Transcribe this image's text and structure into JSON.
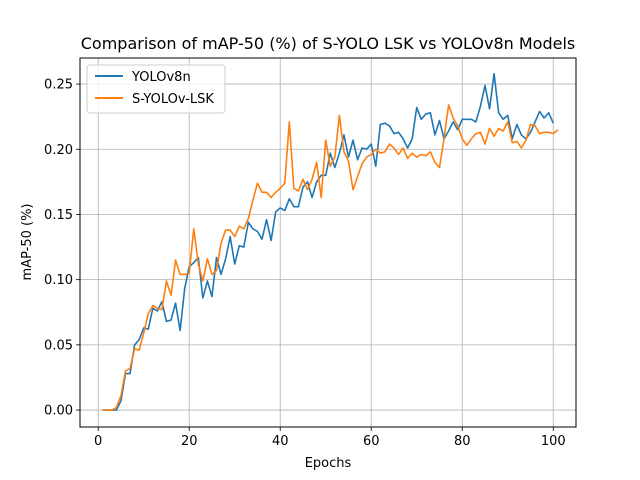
{
  "chart_data": {
    "type": "line",
    "title": "Comparison of mAP-50 (%) of S-YOLO LSK vs YOLOv8n Models",
    "xlabel": "Epochs",
    "ylabel": "mAP-50 (%)",
    "xlim": [
      -4,
      105
    ],
    "ylim": [
      -0.013,
      0.27
    ],
    "xticks": [
      0,
      20,
      40,
      60,
      80,
      100
    ],
    "yticks": [
      0.0,
      0.05,
      0.1,
      0.15,
      0.2,
      0.25
    ],
    "xtick_labels": [
      "0",
      "20",
      "40",
      "60",
      "80",
      "100"
    ],
    "ytick_labels": [
      "0.00",
      "0.05",
      "0.10",
      "0.15",
      "0.20",
      "0.25"
    ],
    "grid": true,
    "legend_position": "top-left",
    "series": [
      {
        "name": "YOLOv8n",
        "color": "#1f77b4",
        "values": [
          0.0,
          0.0,
          0.0,
          0.0,
          0.007,
          0.028,
          0.028,
          0.05,
          0.054,
          0.063,
          0.062,
          0.078,
          0.076,
          0.083,
          0.068,
          0.069,
          0.082,
          0.061,
          0.093,
          0.11,
          0.113,
          0.117,
          0.086,
          0.099,
          0.087,
          0.117,
          0.104,
          0.116,
          0.133,
          0.112,
          0.126,
          0.125,
          0.144,
          0.139,
          0.137,
          0.131,
          0.146,
          0.13,
          0.152,
          0.155,
          0.153,
          0.162,
          0.156,
          0.156,
          0.171,
          0.175,
          0.163,
          0.175,
          0.18,
          0.18,
          0.197,
          0.186,
          0.197,
          0.211,
          0.194,
          0.207,
          0.192,
          0.201,
          0.2,
          0.204,
          0.187,
          0.219,
          0.22,
          0.218,
          0.212,
          0.213,
          0.208,
          0.201,
          0.208,
          0.232,
          0.223,
          0.227,
          0.228,
          0.211,
          0.222,
          0.208,
          0.214,
          0.221,
          0.215,
          0.223,
          0.223,
          0.223,
          0.221,
          0.233,
          0.249,
          0.231,
          0.258,
          0.228,
          0.223,
          0.226,
          0.208,
          0.219,
          0.211,
          0.208,
          0.213,
          0.221,
          0.229,
          0.224,
          0.228,
          0.22
        ]
      },
      {
        "name": "S-YOLOv-LSK",
        "color": "#ff7f0e",
        "values": [
          0.0,
          0.0,
          0.0,
          0.002,
          0.011,
          0.03,
          0.032,
          0.047,
          0.046,
          0.059,
          0.074,
          0.08,
          0.078,
          0.077,
          0.099,
          0.088,
          0.115,
          0.104,
          0.104,
          0.105,
          0.139,
          0.112,
          0.099,
          0.116,
          0.104,
          0.107,
          0.128,
          0.138,
          0.138,
          0.133,
          0.141,
          0.139,
          0.147,
          0.161,
          0.174,
          0.167,
          0.167,
          0.163,
          0.167,
          0.17,
          0.174,
          0.221,
          0.17,
          0.168,
          0.177,
          0.169,
          0.177,
          0.19,
          0.163,
          0.207,
          0.187,
          0.194,
          0.226,
          0.198,
          0.191,
          0.169,
          0.179,
          0.189,
          0.194,
          0.196,
          0.2,
          0.197,
          0.198,
          0.204,
          0.201,
          0.196,
          0.201,
          0.193,
          0.197,
          0.194,
          0.196,
          0.195,
          0.198,
          0.19,
          0.186,
          0.208,
          0.234,
          0.224,
          0.218,
          0.208,
          0.203,
          0.208,
          0.212,
          0.213,
          0.204,
          0.216,
          0.21,
          0.216,
          0.214,
          0.221,
          0.205,
          0.206,
          0.201,
          0.207,
          0.219,
          0.218,
          0.212,
          0.213,
          0.213,
          0.212,
          0.215
        ]
      }
    ]
  }
}
